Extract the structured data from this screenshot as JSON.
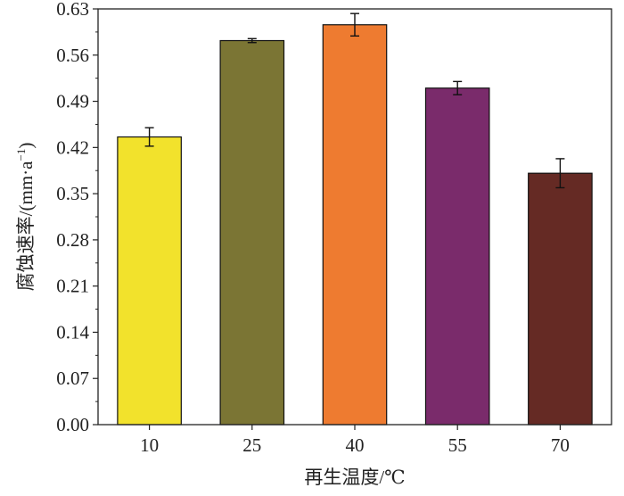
{
  "chart_data": {
    "type": "bar",
    "categories": [
      "10",
      "25",
      "40",
      "55",
      "70"
    ],
    "values": [
      0.436,
      0.582,
      0.606,
      0.51,
      0.381
    ],
    "errors": [
      0.014,
      0.003,
      0.017,
      0.01,
      0.022
    ],
    "bar_colors": [
      "#f2e22c",
      "#7b7534",
      "#ee7b30",
      "#7a2b6b",
      "#652a24"
    ],
    "xlabel": "再生温度/℃",
    "ylabel_main": "腐蚀速率/(mm·a",
    "ylabel_sup": "−1",
    "ylabel_close": ")",
    "ylim": [
      0,
      0.63
    ],
    "yticks": [
      "0.00",
      "0.07",
      "0.14",
      "0.21",
      "0.28",
      "0.35",
      "0.42",
      "0.49",
      "0.56",
      "0.63"
    ],
    "grid": false,
    "legend": "none"
  }
}
